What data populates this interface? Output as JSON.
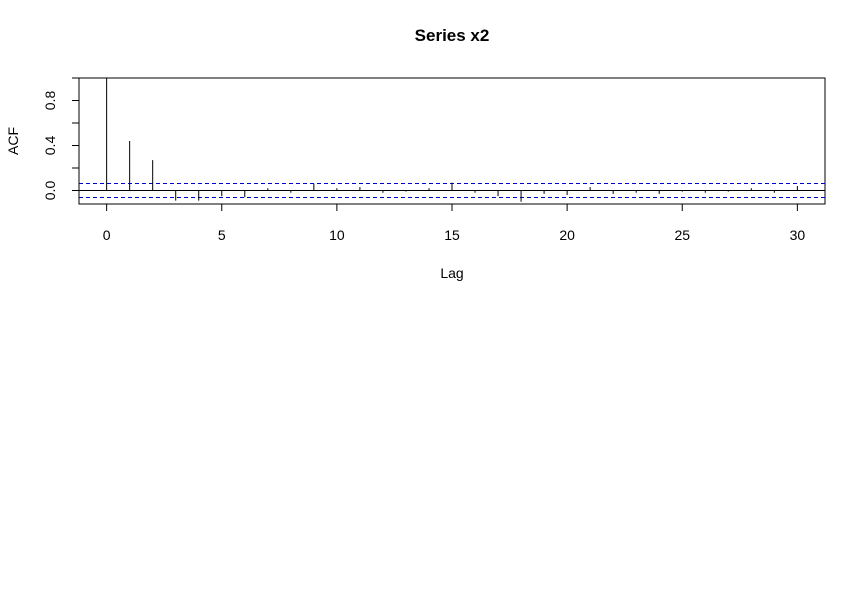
{
  "chart_data": {
    "type": "bar",
    "title": "Series  x2",
    "xlabel": "Lag",
    "ylabel": "ACF",
    "xlim": [
      -1.2,
      31.2
    ],
    "ylim": [
      -0.12,
      1.0
    ],
    "x_ticks": [
      0,
      5,
      10,
      15,
      20,
      25,
      30
    ],
    "x_tick_labels": [
      "0",
      "5",
      "10",
      "15",
      "20",
      "25",
      "30"
    ],
    "y_ticks": [
      0.0,
      0.2,
      0.4,
      0.6,
      0.8,
      1.0
    ],
    "y_tick_labels": [
      "0.0",
      "",
      "0.4",
      "",
      "0.8",
      ""
    ],
    "confidence_bound": 0.062,
    "confidence_color": "#0000cc",
    "bar_color": "#000000",
    "lags": [
      0,
      1,
      2,
      3,
      4,
      5,
      6,
      7,
      8,
      9,
      10,
      11,
      12,
      13,
      14,
      15,
      16,
      17,
      18,
      19,
      20,
      21,
      22,
      23,
      24,
      25,
      26,
      27,
      28,
      29,
      30
    ],
    "values": [
      1.0,
      0.44,
      0.27,
      -0.09,
      -0.09,
      -0.05,
      -0.06,
      0.02,
      -0.02,
      0.06,
      0.02,
      0.03,
      -0.02,
      -0.01,
      0.02,
      0.07,
      -0.02,
      -0.05,
      -0.1,
      -0.03,
      -0.04,
      0.03,
      -0.03,
      -0.02,
      -0.03,
      -0.01,
      -0.02,
      -0.01,
      0.02,
      -0.02,
      0.04
    ]
  }
}
